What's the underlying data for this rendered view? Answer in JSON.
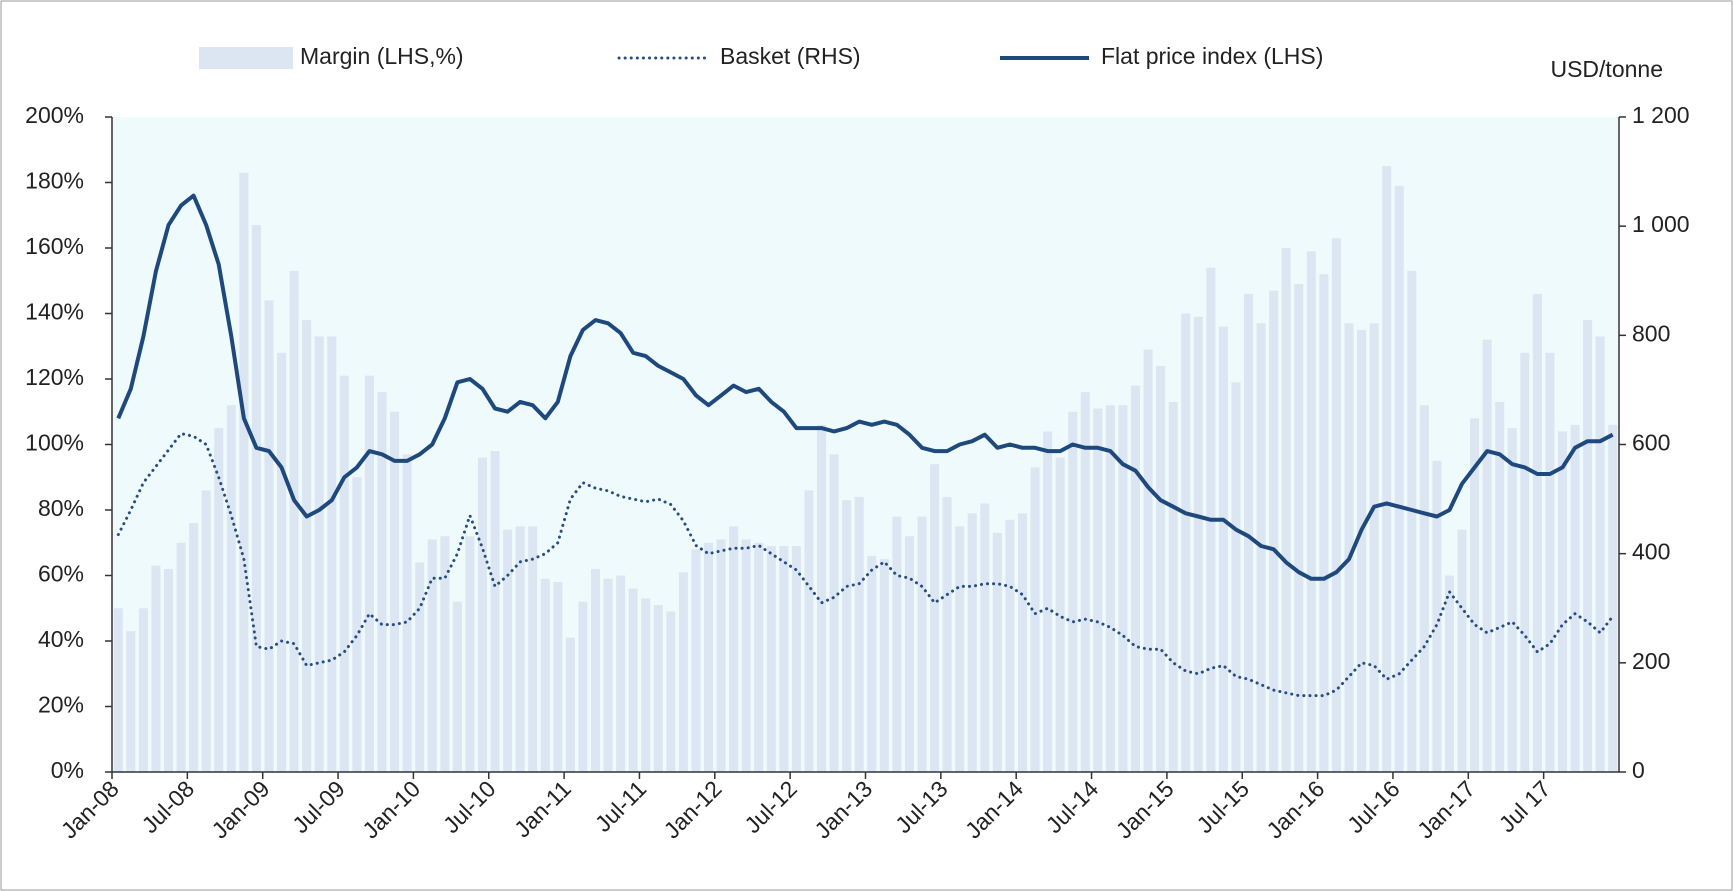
{
  "chart_data": {
    "type": "combo",
    "y2label": "USD/tonne",
    "categories": [
      "Jan-08",
      null,
      null,
      null,
      null,
      null,
      "Jul-08",
      null,
      null,
      null,
      null,
      null,
      "Jan-09",
      null,
      null,
      null,
      null,
      null,
      "Jul-09",
      null,
      null,
      null,
      null,
      null,
      "Jan-10",
      null,
      null,
      null,
      null,
      null,
      "Jul-10",
      null,
      null,
      null,
      null,
      null,
      "Jan-11",
      null,
      null,
      null,
      null,
      null,
      "Jul-11",
      null,
      null,
      null,
      null,
      null,
      "Jan-12",
      null,
      null,
      null,
      null,
      null,
      "Jul-12",
      null,
      null,
      null,
      null,
      null,
      "Jan-13",
      null,
      null,
      null,
      null,
      null,
      "Jul-13",
      null,
      null,
      null,
      null,
      null,
      "Jan-14",
      null,
      null,
      null,
      null,
      null,
      "Jul-14",
      null,
      null,
      null,
      null,
      null,
      "Jan-15",
      null,
      null,
      null,
      null,
      null,
      "Jul-15",
      null,
      null,
      null,
      null,
      null,
      "Jan-16",
      null,
      null,
      null,
      null,
      null,
      "Jul-16",
      null,
      null,
      null,
      null,
      null,
      "Jan-17",
      null,
      null,
      null,
      null,
      null,
      "Jul 17",
      null,
      null,
      null,
      null,
      null
    ],
    "ylim": [
      0,
      200
    ],
    "yticks": [
      {
        "value": 0,
        "label": "0%"
      },
      {
        "value": 20,
        "label": "20%"
      },
      {
        "value": 40,
        "label": "40%"
      },
      {
        "value": 60,
        "label": "60%"
      },
      {
        "value": 80,
        "label": "80%"
      },
      {
        "value": 100,
        "label": "100%"
      },
      {
        "value": 120,
        "label": "120%"
      },
      {
        "value": 140,
        "label": "140%"
      },
      {
        "value": 160,
        "label": "160%"
      },
      {
        "value": 180,
        "label": "180%"
      },
      {
        "value": 200,
        "label": "200%"
      }
    ],
    "y2lim": [
      0,
      1200
    ],
    "y2ticks": [
      0,
      200,
      400,
      600,
      800,
      {
        "value": 1000,
        "label": "1 000"
      },
      {
        "value": 1200,
        "label": "1 200"
      }
    ],
    "series": [
      {
        "name": "Margin (LHS,%)",
        "type": "bar",
        "color": "#dce6f2",
        "values": [
          50,
          43,
          50,
          63,
          62,
          70,
          76,
          86,
          105,
          112,
          183,
          167,
          144,
          128,
          153,
          138,
          133,
          133,
          121,
          90,
          121,
          116,
          110,
          97,
          64,
          71,
          72,
          52,
          72,
          96,
          98,
          74,
          75,
          75,
          59,
          58,
          41,
          52,
          62,
          59,
          60,
          56,
          53,
          51,
          49,
          61,
          68,
          70,
          71,
          75,
          71,
          70,
          69,
          69,
          69,
          86,
          106,
          97,
          83,
          84,
          66,
          65,
          78,
          72,
          78,
          94,
          84,
          75,
          79,
          82,
          73,
          77,
          79,
          93,
          104,
          96,
          110,
          116,
          111,
          112,
          112,
          118,
          129,
          124,
          113,
          140,
          139,
          154,
          136,
          119,
          146,
          137,
          147,
          160,
          149,
          159,
          152,
          163,
          137,
          135,
          137,
          185,
          179,
          153,
          112,
          95,
          60,
          74,
          108,
          132,
          113,
          105,
          128,
          146,
          128,
          104,
          106,
          138,
          133,
          106
        ]
      },
      {
        "name": "Basket (RHS)",
        "type": "line",
        "axis": "y2",
        "line_style": "dotted",
        "color": "#2a4d80",
        "values": [
          435,
          480,
          530,
          560,
          590,
          620,
          615,
          600,
          540,
          470,
          390,
          230,
          225,
          240,
          235,
          195,
          200,
          205,
          220,
          250,
          290,
          270,
          270,
          275,
          300,
          355,
          355,
          400,
          470,
          410,
          340,
          360,
          385,
          390,
          400,
          420,
          500,
          530,
          520,
          515,
          505,
          500,
          495,
          500,
          490,
          460,
          415,
          400,
          405,
          410,
          410,
          415,
          400,
          385,
          370,
          340,
          310,
          320,
          340,
          345,
          370,
          385,
          360,
          355,
          340,
          310,
          325,
          340,
          340,
          345,
          345,
          340,
          325,
          290,
          300,
          285,
          275,
          280,
          275,
          265,
          250,
          230,
          225,
          225,
          200,
          185,
          180,
          190,
          195,
          175,
          170,
          160,
          150,
          145,
          140,
          140,
          140,
          150,
          175,
          200,
          195,
          170,
          180,
          205,
          230,
          270,
          330,
          300,
          270,
          255,
          265,
          275,
          250,
          220,
          235,
          270,
          290,
          275,
          255,
          285
        ]
      },
      {
        "name": "Flat price index (LHS)",
        "type": "line",
        "line_style": "solid",
        "color": "#1f497d",
        "values": [
          108,
          117,
          133,
          153,
          167,
          173,
          176,
          167,
          155,
          133,
          108,
          99,
          98,
          93,
          83,
          78,
          80,
          83,
          90,
          93,
          98,
          97,
          95,
          95,
          97,
          100,
          108,
          119,
          120,
          117,
          111,
          110,
          113,
          112,
          108,
          113,
          127,
          135,
          138,
          137,
          134,
          128,
          127,
          124,
          122,
          120,
          115,
          112,
          115,
          118,
          116,
          117,
          113,
          110,
          105,
          105,
          105,
          104,
          105,
          107,
          106,
          107,
          106,
          103,
          99,
          98,
          98,
          100,
          101,
          103,
          99,
          100,
          99,
          99,
          98,
          98,
          100,
          99,
          99,
          98,
          94,
          92,
          87,
          83,
          81,
          79,
          78,
          77,
          77,
          74,
          72,
          69,
          68,
          64,
          61,
          59,
          59,
          61,
          65,
          74,
          81,
          82,
          81,
          80,
          79,
          78,
          80,
          88,
          93,
          98,
          97,
          94,
          93,
          91,
          91,
          93,
          99,
          101,
          101,
          103
        ]
      }
    ]
  }
}
